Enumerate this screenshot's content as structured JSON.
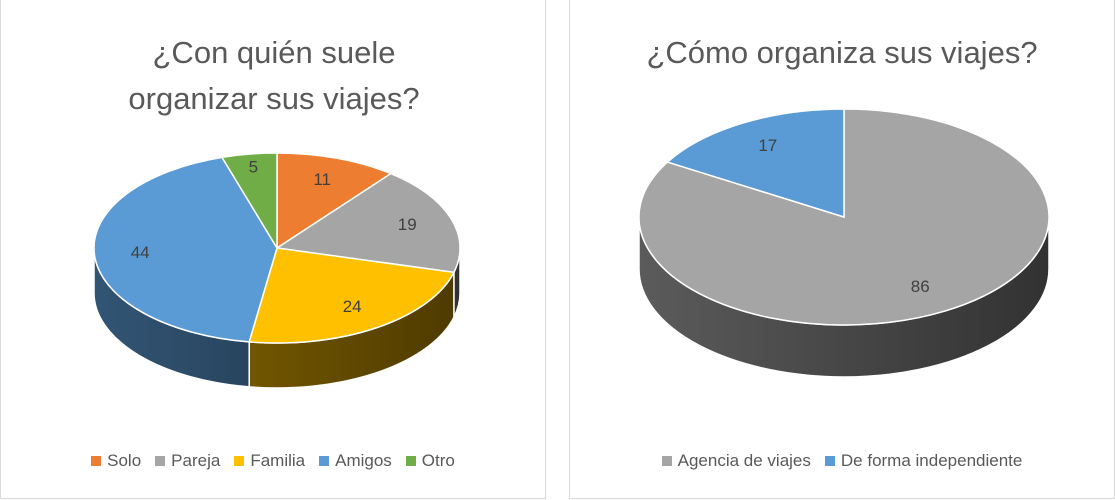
{
  "chart_data": [
    {
      "type": "pie",
      "title": "¿Con quién suele organizar sus viajes?",
      "categories": [
        "Solo",
        "Pareja",
        "Familia",
        "Amigos",
        "Otro"
      ],
      "values": [
        11,
        19,
        24,
        44,
        5
      ],
      "colors": [
        "#ed7d31",
        "#a5a5a5",
        "#ffc000",
        "#5b9bd5",
        "#70ad47"
      ],
      "legend": "bottom"
    },
    {
      "type": "pie",
      "title": "¿Cómo organiza sus viajes?",
      "categories": [
        "Agencia de viajes",
        "De forma independiente"
      ],
      "values": [
        86,
        17
      ],
      "colors": [
        "#a5a5a5",
        "#5b9bd5"
      ],
      "legend": "bottom"
    }
  ]
}
